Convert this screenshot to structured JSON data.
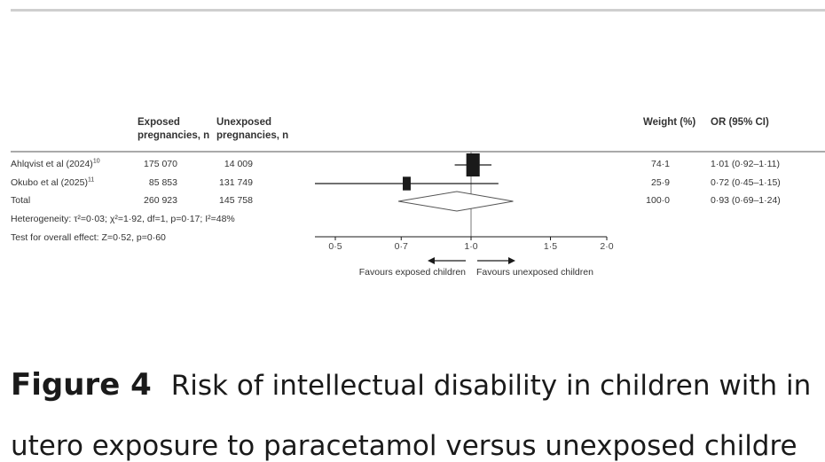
{
  "columns": {
    "exposed": [
      "Exposed",
      "pregnancies, n"
    ],
    "unexposed": [
      "Unexposed",
      "pregnancies, n"
    ],
    "weight": "Weight (%)",
    "or": "OR (95% CI)"
  },
  "rows": [
    {
      "study": "Ahlqvist et al (2024)",
      "ref": "10",
      "exposed": "175 070",
      "unexposed": "14 009",
      "weight": "74·1",
      "or_text": "1·01 (0·92–1·11)"
    },
    {
      "study": "Okubo et al (2025)",
      "ref": "11",
      "exposed": "85 853",
      "unexposed": "131 749",
      "weight": "25·9",
      "or_text": "0·72 (0·45–1·15)"
    },
    {
      "study": "Total",
      "ref": "",
      "exposed": "260 923",
      "unexposed": "145 758",
      "weight": "100·0",
      "or_text": "0·93 (0·69–1·24)"
    }
  ],
  "heterogeneity": "Heterogeneity: τ²=0·03; χ²=1·92, df=1, p=0·17; I²=48%",
  "overall_effect": "Test for overall effect: Z=0·52, p=0·60",
  "favours_left": "Favours exposed children",
  "favours_right": "Favours unexposed children",
  "caption": {
    "number": "Figure 4",
    "line1": "Risk of intellectual disability in children with in",
    "line2": "utero exposure to paracetamol versus unexposed childre"
  },
  "chart_data": {
    "type": "forest",
    "x_scale": "log",
    "xlim": [
      0.5,
      2.0
    ],
    "ticks": [
      0.5,
      0.7,
      1.0,
      1.5,
      2.0
    ],
    "tick_labels": [
      "0·5",
      "0·7",
      "1·0",
      "1·5",
      "2·0"
    ],
    "reference_line": 1.0,
    "studies": [
      {
        "name": "Ahlqvist et al (2024)",
        "or": 1.01,
        "lower": 0.92,
        "upper": 1.11,
        "weight": 74.1
      },
      {
        "name": "Okubo et al (2025)",
        "or": 0.72,
        "lower": 0.45,
        "upper": 1.15,
        "weight": 25.9
      }
    ],
    "pooled": {
      "name": "Total",
      "or": 0.93,
      "lower": 0.69,
      "upper": 1.24,
      "weight": 100.0
    }
  },
  "colors": {
    "ink": "#1a1a1a",
    "rule": "#cfcfcf"
  }
}
